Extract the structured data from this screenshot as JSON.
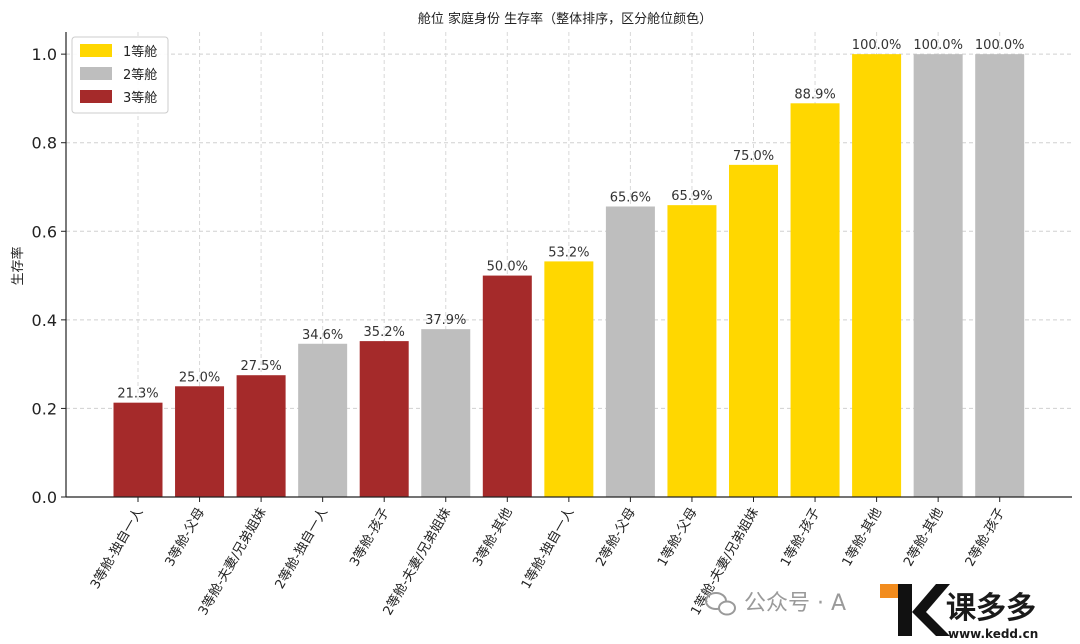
{
  "chart_data": {
    "type": "bar",
    "title": "舱位 家庭身份 生存率（整体排序，区分舱位颜色）",
    "xlabel": "",
    "ylabel": "生存率",
    "ylim": [
      0,
      1.05
    ],
    "yticks": [
      "0.0",
      "0.2",
      "0.4",
      "0.6",
      "0.8",
      "1.0"
    ],
    "grid": true,
    "legend_position": "top-left",
    "legend": [
      {
        "name": "1等舱",
        "color": "#FFD700"
      },
      {
        "name": "2等舱",
        "color": "#BEBEBE"
      },
      {
        "name": "3等舱",
        "color": "#A52A2A"
      }
    ],
    "categories": [
      "3等舱-独自一人",
      "3等舱-父母",
      "3等舱-夫妻/兄弟姐妹",
      "2等舱-独自一人",
      "3等舱-孩子",
      "2等舱-夫妻/兄弟姐妹",
      "3等舱-其他",
      "1等舱-独自一人",
      "2等舱-父母",
      "1等舱-父母",
      "1等舱-夫妻/兄弟姐妹",
      "1等舱-孩子",
      "1等舱-其他",
      "2等舱-其他",
      "2等舱-孩子"
    ],
    "values": [
      0.213,
      0.25,
      0.275,
      0.346,
      0.352,
      0.379,
      0.5,
      0.532,
      0.656,
      0.659,
      0.75,
      0.889,
      1.0,
      1.0,
      1.0
    ],
    "labels": [
      "21.3%",
      "25.0%",
      "27.5%",
      "34.6%",
      "35.2%",
      "37.9%",
      "50.0%",
      "53.2%",
      "65.6%",
      "65.9%",
      "75.0%",
      "88.9%",
      "100.0%",
      "100.0%",
      "100.0%"
    ],
    "classes": [
      3,
      3,
      3,
      2,
      3,
      2,
      3,
      1,
      2,
      1,
      1,
      1,
      1,
      2,
      2
    ]
  },
  "watermark": {
    "text": "公众号 · A",
    "brand": "课多多",
    "url": "www.kedd.cn",
    "icon": "wechat-icon"
  }
}
